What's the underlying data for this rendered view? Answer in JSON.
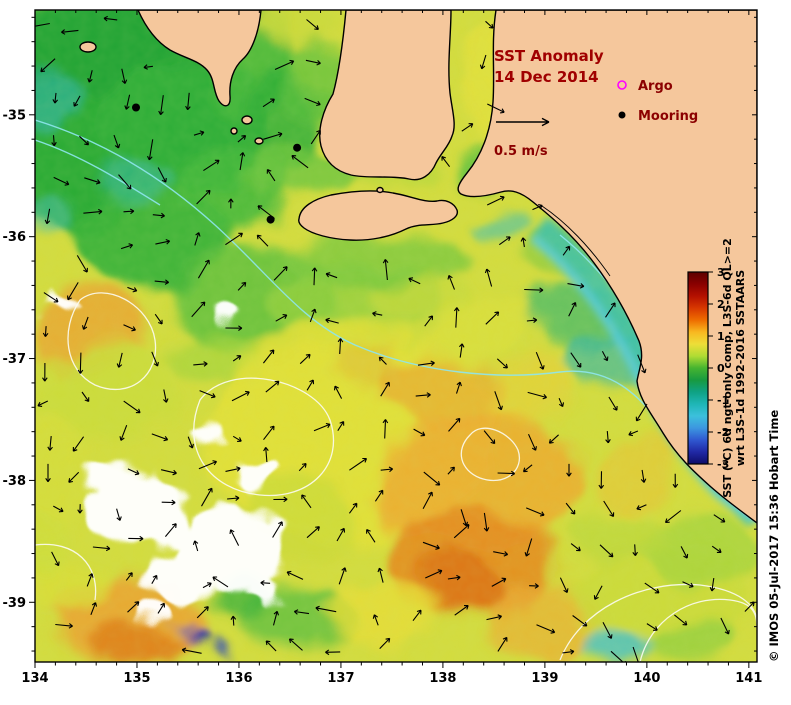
{
  "title": {
    "line1": "SST Anomaly",
    "line2": "14 Dec 2014"
  },
  "legend": {
    "argo_label": "Argo",
    "argo_color": "#ff00ff",
    "mooring_label": "Mooring",
    "mooring_color": "#000000",
    "speed_label": "0.5 m/s"
  },
  "colorbar": {
    "max": 3,
    "min": -3,
    "ticks": [
      "3",
      "2",
      "1",
      "0",
      "-1",
      "-2",
      "-3"
    ],
    "label_line1": "SST (°C) 6d ngt-only comp, L3S-6d QL>=2",
    "label_line2": "wrt L3S-1d 1992-2016 SSTAARS",
    "colors_top_to_bottom": [
      "#5c0000",
      "#8a0000",
      "#b41000",
      "#d83800",
      "#ee6c00",
      "#f8b820",
      "#eede38",
      "#b0dc34",
      "#46b430",
      "#189a40",
      "#0fa284",
      "#1fb6b6",
      "#3cc0dc",
      "#3c96e0",
      "#3058d0",
      "#2028a4",
      "#0e0c68"
    ]
  },
  "attribution": "© IMOS 05-Jul-2017 15:36 Hobart Time",
  "axes": {
    "x_ticks": [
      "134",
      "135",
      "136",
      "137",
      "138",
      "139",
      "140",
      "141"
    ],
    "y_ticks": [
      "-35",
      "-36",
      "-37",
      "-38",
      "-39"
    ],
    "x_range": [
      134,
      141.08
    ],
    "y_range": [
      -39.49,
      -34.14
    ]
  },
  "markers": {
    "moorings_lonlat": [
      [
        134.99,
        -34.94
      ],
      [
        136.57,
        -35.27
      ],
      [
        136.31,
        -35.86
      ]
    ]
  }
}
